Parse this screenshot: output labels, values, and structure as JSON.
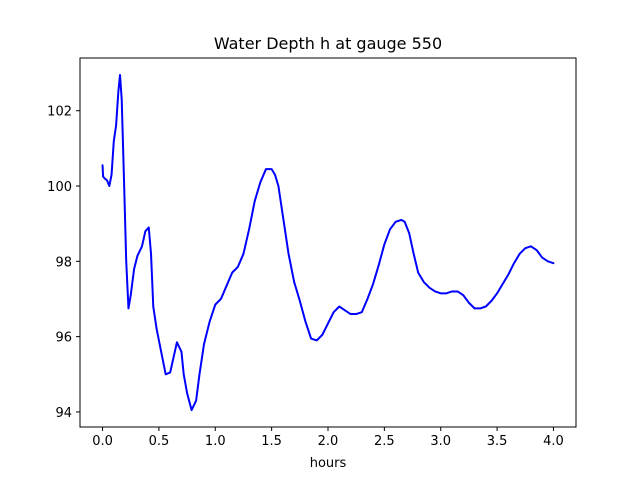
{
  "chart_data": {
    "type": "line",
    "title": "Water Depth h at gauge 550",
    "xlabel": "hours",
    "ylabel": "",
    "xlim": [
      -0.2,
      4.2
    ],
    "ylim": [
      93.6,
      103.4
    ],
    "xticks": [
      0.0,
      0.5,
      1.0,
      1.5,
      2.0,
      2.5,
      3.0,
      3.5,
      4.0
    ],
    "xtick_labels": [
      "0.0",
      "0.5",
      "1.0",
      "1.5",
      "2.0",
      "2.5",
      "3.0",
      "3.5",
      "4.0"
    ],
    "yticks": [
      94,
      96,
      98,
      100,
      102
    ],
    "ytick_labels": [
      "94",
      "96",
      "98",
      "100",
      "102"
    ],
    "grid": false,
    "series": [
      {
        "color": "#0000ff",
        "x": [
          0.0,
          0.005,
          0.02,
          0.04,
          0.06,
          0.08,
          0.1,
          0.12,
          0.14,
          0.155,
          0.17,
          0.19,
          0.21,
          0.23,
          0.25,
          0.28,
          0.31,
          0.35,
          0.38,
          0.41,
          0.43,
          0.45,
          0.48,
          0.52,
          0.56,
          0.6,
          0.63,
          0.66,
          0.7,
          0.72,
          0.75,
          0.79,
          0.83,
          0.86,
          0.9,
          0.95,
          1.0,
          1.05,
          1.1,
          1.15,
          1.2,
          1.25,
          1.3,
          1.35,
          1.4,
          1.45,
          1.5,
          1.53,
          1.56,
          1.6,
          1.65,
          1.7,
          1.75,
          1.8,
          1.85,
          1.9,
          1.95,
          2.0,
          2.05,
          2.1,
          2.15,
          2.2,
          2.25,
          2.3,
          2.35,
          2.4,
          2.45,
          2.5,
          2.55,
          2.6,
          2.65,
          2.68,
          2.72,
          2.76,
          2.8,
          2.85,
          2.9,
          2.95,
          3.0,
          3.05,
          3.1,
          3.15,
          3.2,
          3.25,
          3.3,
          3.35,
          3.4,
          3.45,
          3.5,
          3.55,
          3.6,
          3.65,
          3.7,
          3.75,
          3.8,
          3.85,
          3.9,
          3.95,
          4.0
        ],
        "values": [
          100.55,
          100.25,
          100.2,
          100.15,
          100.0,
          100.3,
          101.2,
          101.6,
          102.5,
          102.95,
          102.3,
          100.2,
          98.0,
          96.75,
          97.1,
          97.8,
          98.15,
          98.4,
          98.8,
          98.9,
          98.2,
          96.8,
          96.2,
          95.6,
          95.0,
          95.05,
          95.45,
          95.85,
          95.6,
          95.0,
          94.5,
          94.05,
          94.3,
          95.0,
          95.8,
          96.4,
          96.85,
          97.0,
          97.35,
          97.7,
          97.85,
          98.2,
          98.85,
          99.6,
          100.1,
          100.45,
          100.45,
          100.3,
          100.0,
          99.2,
          98.2,
          97.45,
          96.95,
          96.4,
          95.95,
          95.9,
          96.05,
          96.35,
          96.65,
          96.8,
          96.7,
          96.6,
          96.6,
          96.65,
          97.0,
          97.4,
          97.9,
          98.45,
          98.85,
          99.05,
          99.1,
          99.05,
          98.75,
          98.2,
          97.7,
          97.45,
          97.3,
          97.2,
          97.15,
          97.15,
          97.2,
          97.2,
          97.1,
          96.9,
          96.75,
          96.75,
          96.8,
          96.95,
          97.15,
          97.4,
          97.65,
          97.95,
          98.2,
          98.35,
          98.4,
          98.3,
          98.1,
          98.0,
          97.95
        ]
      }
    ]
  }
}
